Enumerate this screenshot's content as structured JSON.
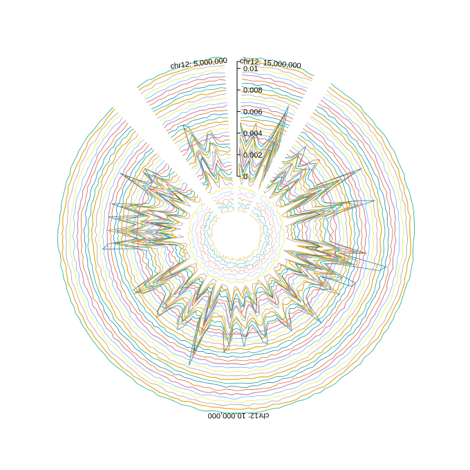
{
  "chart_data": {
    "type": "line",
    "layout": "circular",
    "title": "",
    "chromosome_labels": [
      "chr12: 5,000,000",
      "chr12: 15,000,000",
      "chr12: 10,000,000"
    ],
    "chromosome_positions": [
      5000000,
      15000000,
      10000000
    ],
    "y_axis": {
      "ticks": [
        0,
        0.002,
        0.004,
        0.006,
        0.008,
        0.01
      ],
      "tick_labels": [
        "0",
        "0.002",
        "0.004",
        "0.006",
        "0.008",
        "0.01"
      ],
      "ylim": [
        0,
        0.01
      ]
    },
    "series_count": 42,
    "palette": [
      "#E69F00",
      "#009E73",
      "#0072B2",
      "#D55E00",
      "#CC79A7",
      "#56B4E9",
      "#F0E442",
      "#999999"
    ],
    "spike_profile": [
      {
        "angle_deg": -95,
        "value": 0.0056
      },
      {
        "angle_deg": -88,
        "value": 0.0042
      },
      {
        "angle_deg": -82,
        "value": 0.0036
      },
      {
        "angle_deg": -75,
        "value": 0.0046
      },
      {
        "angle_deg": -62,
        "value": 0.0042
      },
      {
        "angle_deg": -55,
        "value": 0.0039
      },
      {
        "angle_deg": -25,
        "value": 0.0038
      },
      {
        "angle_deg": -15,
        "value": 0.0022
      },
      {
        "angle_deg": 0,
        "value": 0.004
      },
      {
        "angle_deg": 2,
        "value": 0.0028
      },
      {
        "angle_deg": 10,
        "value": 0.0024
      },
      {
        "angle_deg": 20,
        "value": 0.0018
      },
      {
        "angle_deg": 22,
        "value": 0.006
      },
      {
        "angle_deg": 38,
        "value": 0.0024
      },
      {
        "angle_deg": 47,
        "value": 0.0029
      },
      {
        "angle_deg": 62,
        "value": 0.0049
      },
      {
        "angle_deg": 75,
        "value": 0.0064
      },
      {
        "angle_deg": 98,
        "value": 0.0046
      },
      {
        "angle_deg": 103,
        "value": 0.0076
      },
      {
        "angle_deg": 113,
        "value": 0.0054
      },
      {
        "angle_deg": 120,
        "value": 0.0028
      },
      {
        "angle_deg": 136,
        "value": 0.003
      },
      {
        "angle_deg": 150,
        "value": 0.0024
      },
      {
        "angle_deg": 165,
        "value": 0.0032
      },
      {
        "angle_deg": 175,
        "value": 0.0024
      },
      {
        "angle_deg": 185,
        "value": 0.0038
      },
      {
        "angle_deg": 200,
        "value": 0.0047
      },
      {
        "angle_deg": 212,
        "value": 0.0031
      },
      {
        "angle_deg": 225,
        "value": 0.0038
      },
      {
        "angle_deg": 240,
        "value": 0.0052
      }
    ],
    "gaps_deg": [
      [
        -43,
        -36
      ],
      [
        27,
        31
      ],
      [
        -3,
        0
      ]
    ]
  }
}
